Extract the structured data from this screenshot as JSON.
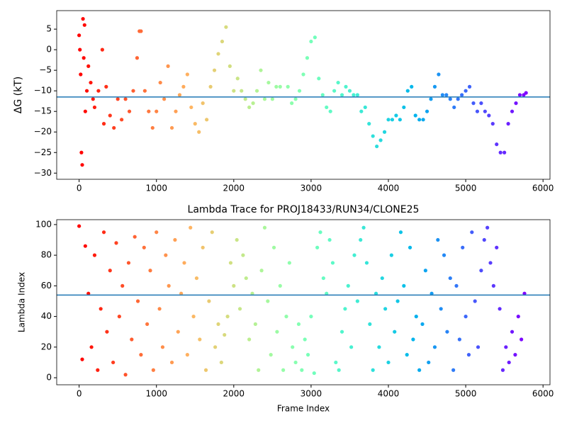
{
  "chart_data": [
    {
      "type": "scatter",
      "ylabel": "ΔG (kT)",
      "colormap": "rainbow_r",
      "hline": -11.5,
      "hline_color": "#1f77b4",
      "x": [
        0,
        10,
        20,
        30,
        40,
        50,
        60,
        70,
        80,
        100,
        120,
        150,
        180,
        200,
        250,
        300,
        320,
        350,
        400,
        450,
        500,
        550,
        600,
        650,
        700,
        750,
        780,
        800,
        850,
        900,
        950,
        1000,
        1050,
        1100,
        1150,
        1200,
        1250,
        1300,
        1350,
        1400,
        1450,
        1500,
        1550,
        1600,
        1650,
        1700,
        1750,
        1800,
        1850,
        1900,
        1950,
        2000,
        2050,
        2100,
        2150,
        2200,
        2250,
        2300,
        2350,
        2400,
        2450,
        2500,
        2550,
        2600,
        2700,
        2750,
        2800,
        2850,
        2900,
        2950,
        3000,
        3050,
        3100,
        3150,
        3200,
        3250,
        3300,
        3350,
        3400,
        3450,
        3500,
        3550,
        3600,
        3650,
        3700,
        3750,
        3800,
        3850,
        3900,
        3950,
        4000,
        4050,
        4100,
        4150,
        4200,
        4250,
        4300,
        4350,
        4400,
        4450,
        4500,
        4550,
        4600,
        4650,
        4700,
        4750,
        4800,
        4850,
        4900,
        4950,
        5000,
        5050,
        5100,
        5150,
        5200,
        5250,
        5300,
        5350,
        5400,
        5450,
        5500,
        5550,
        5600,
        5650,
        5700,
        5750,
        5780
      ],
      "values": [
        3.5,
        0,
        -6,
        -25,
        -28,
        7.5,
        -2,
        6,
        -15,
        -10,
        -4,
        -8,
        -12,
        -14,
        -10,
        0,
        -18,
        -9,
        -16,
        -19,
        -12,
        -17,
        -12,
        -15,
        -10,
        -2,
        4.5,
        4.5,
        -10,
        -15,
        -19,
        -15,
        -8,
        -12,
        -4,
        -19,
        -15,
        -11,
        -9,
        -6,
        -14,
        -18,
        -20,
        -13,
        -17,
        -9,
        -5,
        -1,
        2,
        5.5,
        -4,
        -10,
        -7,
        -10,
        -12,
        -14,
        -13,
        -10,
        -5,
        -12,
        -8,
        -12,
        -9,
        -9,
        -9,
        -13,
        -12,
        -10,
        -6,
        -2,
        2,
        3,
        -7,
        -11,
        -14,
        -15,
        -10,
        -8,
        -11,
        -9,
        -10,
        -11,
        -11,
        -15,
        -14,
        -18,
        -21,
        -23.5,
        -22,
        -20,
        -17,
        -17,
        -16,
        -17,
        -14,
        -10,
        -9,
        -16,
        -17,
        -17,
        -15,
        -12,
        -9,
        -6,
        -11,
        -11,
        -12,
        -14,
        -12,
        -11,
        -10,
        -9,
        -13,
        -15,
        -13,
        -15,
        -16,
        -18,
        -23,
        -25,
        -25,
        -18,
        -15,
        -13,
        -11,
        -11,
        -10.5
      ],
      "xlim": [
        -290,
        6090
      ],
      "xticks": [
        0,
        1000,
        2000,
        3000,
        4000,
        5000,
        6000
      ],
      "ylim": [
        -31.5,
        9.5
      ],
      "yticks": [
        {
          "value": -30,
          "label": "−30"
        },
        {
          "value": -25,
          "label": "−25"
        },
        {
          "value": -20,
          "label": "−20"
        },
        {
          "value": -15,
          "label": "−15"
        },
        {
          "value": -10,
          "label": "−10"
        },
        {
          "value": -5,
          "label": "−5"
        },
        0,
        5
      ]
    },
    {
      "type": "scatter",
      "title": "Lambda Trace for PROJ18433/RUN34/CLONE25",
      "xlabel": "Frame Index",
      "ylabel": "Lambda Index",
      "colormap": "rainbow_r",
      "hline": 54,
      "hline_color": "#1f77b4",
      "x": [
        0,
        40,
        80,
        120,
        160,
        200,
        240,
        280,
        320,
        360,
        400,
        440,
        480,
        520,
        560,
        600,
        640,
        680,
        720,
        760,
        800,
        840,
        880,
        920,
        960,
        1000,
        1040,
        1080,
        1120,
        1160,
        1200,
        1240,
        1280,
        1320,
        1360,
        1400,
        1440,
        1480,
        1520,
        1560,
        1600,
        1640,
        1680,
        1720,
        1760,
        1800,
        1840,
        1880,
        1920,
        1960,
        2000,
        2040,
        2080,
        2120,
        2160,
        2200,
        2240,
        2280,
        2320,
        2360,
        2400,
        2440,
        2480,
        2520,
        2560,
        2600,
        2640,
        2680,
        2720,
        2760,
        2800,
        2840,
        2880,
        2920,
        2960,
        3000,
        3040,
        3080,
        3120,
        3160,
        3200,
        3240,
        3280,
        3320,
        3360,
        3400,
        3440,
        3480,
        3520,
        3560,
        3600,
        3640,
        3680,
        3720,
        3760,
        3800,
        3840,
        3880,
        3920,
        3960,
        4000,
        4040,
        4080,
        4120,
        4160,
        4200,
        4240,
        4280,
        4320,
        4360,
        4400,
        4440,
        4480,
        4520,
        4560,
        4600,
        4640,
        4680,
        4720,
        4760,
        4800,
        4840,
        4880,
        4920,
        4960,
        5000,
        5040,
        5080,
        5120,
        5160,
        5200,
        5240,
        5280,
        5320,
        5360,
        5400,
        5440,
        5480,
        5520,
        5560,
        5600,
        5640,
        5680,
        5720,
        5760
      ],
      "values": [
        99,
        12,
        86,
        55,
        20,
        80,
        5,
        45,
        95,
        30,
        70,
        10,
        88,
        40,
        60,
        2,
        75,
        25,
        92,
        50,
        15,
        85,
        35,
        70,
        5,
        95,
        45,
        20,
        80,
        60,
        10,
        90,
        30,
        55,
        75,
        15,
        98,
        40,
        65,
        25,
        85,
        5,
        50,
        95,
        20,
        35,
        10,
        28,
        40,
        75,
        60,
        90,
        45,
        80,
        65,
        25,
        55,
        35,
        5,
        70,
        98,
        50,
        15,
        85,
        30,
        60,
        5,
        40,
        75,
        20,
        10,
        35,
        5,
        25,
        15,
        40,
        3,
        85,
        95,
        65,
        55,
        90,
        75,
        10,
        5,
        30,
        45,
        60,
        20,
        80,
        50,
        90,
        98,
        75,
        35,
        5,
        55,
        20,
        65,
        45,
        10,
        80,
        30,
        50,
        95,
        60,
        15,
        85,
        25,
        40,
        5,
        35,
        70,
        10,
        55,
        20,
        90,
        45,
        80,
        30,
        65,
        5,
        60,
        25,
        85,
        40,
        15,
        95,
        50,
        20,
        70,
        90,
        98,
        75,
        60,
        85,
        45,
        5,
        20,
        10,
        30,
        15,
        40,
        25,
        55
      ],
      "xlim": [
        -290,
        6090
      ],
      "xticks": [
        0,
        1000,
        2000,
        3000,
        4000,
        5000,
        6000
      ],
      "ylim": [
        -4.6,
        103.2
      ],
      "yticks": [
        0,
        20,
        40,
        60,
        80,
        100
      ]
    }
  ]
}
